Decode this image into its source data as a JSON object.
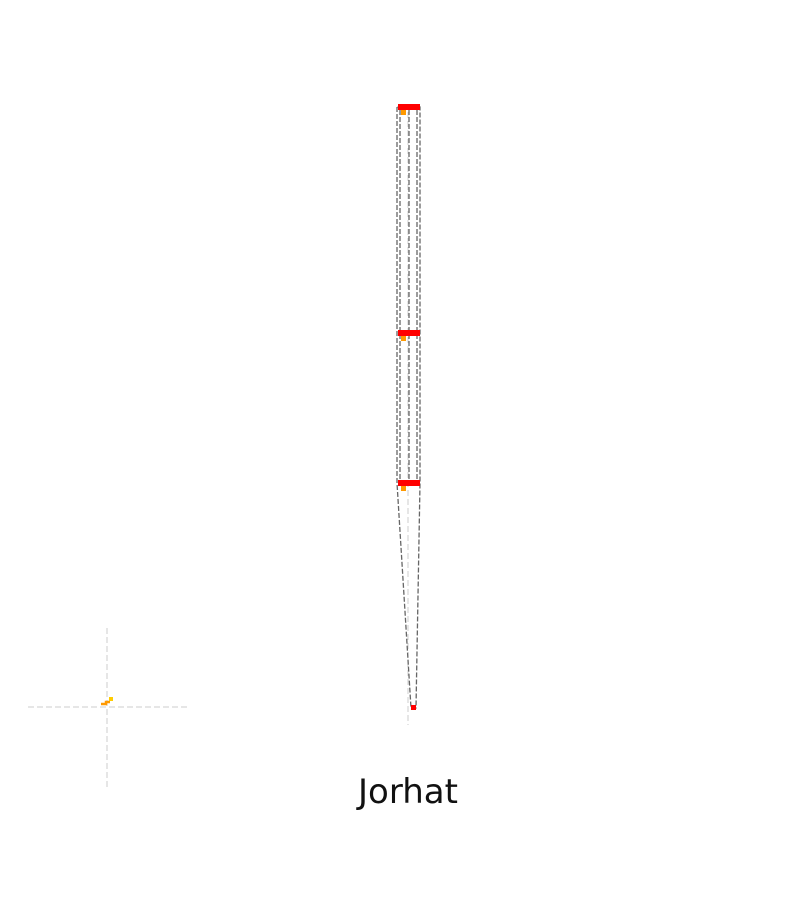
{
  "caption": "Jorhat",
  "colors": {
    "background": "#ffffff",
    "guide": "#cccccc",
    "outline": "#666666",
    "marker_red": "#ff0000",
    "marker_orange": "#ff9900",
    "text": "#111111"
  }
}
